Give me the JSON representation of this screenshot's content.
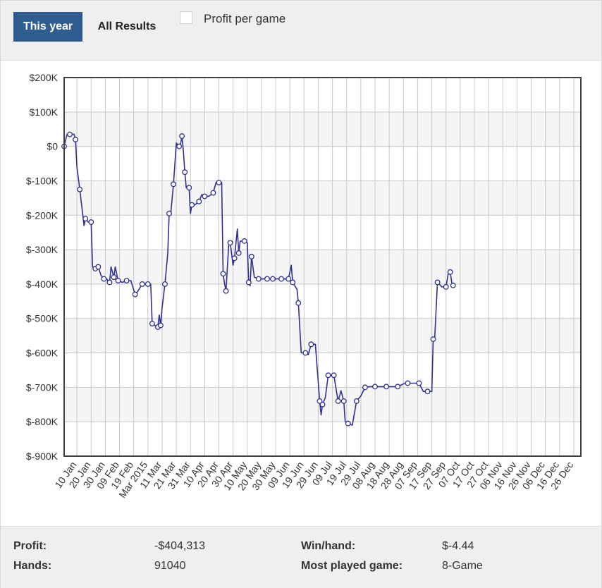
{
  "toolbar": {
    "tab_this_year": "This year",
    "tab_all_results": "All Results",
    "checkbox_label": "Profit per game",
    "checkbox_checked": false
  },
  "colors": {
    "accent": "#2f5d8f",
    "line": "#2e3192",
    "grid": "#c8c8c8",
    "band": "#f5f5f5"
  },
  "chart_data": {
    "type": "line",
    "ylim": [
      -900000,
      200000
    ],
    "y_ticks": [
      200000,
      100000,
      0,
      -100000,
      -200000,
      -300000,
      -400000,
      -500000,
      -600000,
      -700000,
      -800000,
      -900000
    ],
    "y_tick_labels": [
      "$200K",
      "$100K",
      "$0",
      "$-100K",
      "$-200K",
      "$-300K",
      "$-400K",
      "$-500K",
      "$-600K",
      "$-700K",
      "$-800K",
      "$-900K"
    ],
    "x_tick_labels": [
      "10 Jan",
      "20 Jan",
      "30 Jan",
      "09 Feb",
      "19 Feb",
      "Mar 2015",
      "11 Mar",
      "21 Mar",
      "31 Mar",
      "10 Apr",
      "20 Apr",
      "30 Apr",
      "10 May",
      "20 May",
      "30 May",
      "09 Jun",
      "19 Jun",
      "29 Jun",
      "09 Jul",
      "19 Jul",
      "29 Jul",
      "08 Aug",
      "18 Aug",
      "28 Aug",
      "07 Sep",
      "17 Sep",
      "27 Sep",
      "07 Oct",
      "17 Oct",
      "27 Oct",
      "06 Nov",
      "16 Nov",
      "26 Nov",
      "06 Dec",
      "16 Dec",
      "26 Dec"
    ],
    "x_tick_dates": [
      "2015-01-10",
      "2015-01-20",
      "2015-01-30",
      "2015-02-09",
      "2015-02-19",
      "2015-03-01",
      "2015-03-11",
      "2015-03-21",
      "2015-03-31",
      "2015-04-10",
      "2015-04-20",
      "2015-04-30",
      "2015-05-10",
      "2015-05-20",
      "2015-05-30",
      "2015-06-09",
      "2015-06-19",
      "2015-06-29",
      "2015-07-09",
      "2015-07-19",
      "2015-07-29",
      "2015-08-08",
      "2015-08-18",
      "2015-08-28",
      "2015-09-07",
      "2015-09-17",
      "2015-09-27",
      "2015-10-07",
      "2015-10-17",
      "2015-10-27",
      "2015-11-06",
      "2015-11-16",
      "2015-11-26",
      "2015-12-06",
      "2015-12-16",
      "2015-12-26"
    ],
    "xlim": [
      "2015-01-01",
      "2015-12-31"
    ],
    "grid": true,
    "series": [
      {
        "points": [
          [
            "2015-01-01",
            0
          ],
          [
            "2015-01-03",
            35000
          ],
          [
            "2015-01-05",
            35000
          ],
          [
            "2015-01-08",
            35000
          ],
          [
            "2015-01-09",
            20000
          ],
          [
            "2015-01-10",
            -60000
          ],
          [
            "2015-01-12",
            -125000
          ],
          [
            "2015-01-15",
            -230000
          ],
          [
            "2015-01-16",
            -210000
          ],
          [
            "2015-01-18",
            -220000
          ],
          [
            "2015-01-20",
            -220000
          ],
          [
            "2015-01-21",
            -350000
          ],
          [
            "2015-01-23",
            -355000
          ],
          [
            "2015-01-24",
            -345000
          ],
          [
            "2015-01-25",
            -350000
          ],
          [
            "2015-01-27",
            -375000
          ],
          [
            "2015-01-29",
            -385000
          ],
          [
            "2015-01-31",
            -385000
          ],
          [
            "2015-02-02",
            -395000
          ],
          [
            "2015-02-03",
            -350000
          ],
          [
            "2015-02-05",
            -380000
          ],
          [
            "2015-02-06",
            -350000
          ],
          [
            "2015-02-08",
            -390000
          ],
          [
            "2015-02-11",
            -395000
          ],
          [
            "2015-02-14",
            -390000
          ],
          [
            "2015-02-17",
            -390000
          ],
          [
            "2015-02-20",
            -430000
          ],
          [
            "2015-02-22",
            -420000
          ],
          [
            "2015-02-25",
            -400000
          ],
          [
            "2015-02-27",
            -400000
          ],
          [
            "2015-03-01",
            -400000
          ],
          [
            "2015-03-03",
            -400000
          ],
          [
            "2015-03-04",
            -515000
          ],
          [
            "2015-03-06",
            -520000
          ],
          [
            "2015-03-08",
            -525000
          ],
          [
            "2015-03-09",
            -490000
          ],
          [
            "2015-03-10",
            -520000
          ],
          [
            "2015-03-11",
            -470000
          ],
          [
            "2015-03-13",
            -400000
          ],
          [
            "2015-03-15",
            -310000
          ],
          [
            "2015-03-16",
            -195000
          ],
          [
            "2015-03-17",
            -200000
          ],
          [
            "2015-03-19",
            -110000
          ],
          [
            "2015-03-21",
            10000
          ],
          [
            "2015-03-23",
            0
          ],
          [
            "2015-03-24",
            5000
          ],
          [
            "2015-03-25",
            30000
          ],
          [
            "2015-03-26",
            -15000
          ],
          [
            "2015-03-27",
            -75000
          ],
          [
            "2015-03-28",
            -120000
          ],
          [
            "2015-03-30",
            -120000
          ],
          [
            "2015-03-31",
            -195000
          ],
          [
            "2015-04-01",
            -170000
          ],
          [
            "2015-04-03",
            -170000
          ],
          [
            "2015-04-06",
            -160000
          ],
          [
            "2015-04-08",
            -140000
          ],
          [
            "2015-04-10",
            -145000
          ],
          [
            "2015-04-13",
            -145000
          ],
          [
            "2015-04-16",
            -135000
          ],
          [
            "2015-04-18",
            -105000
          ],
          [
            "2015-04-20",
            -105000
          ],
          [
            "2015-04-22",
            -105000
          ],
          [
            "2015-04-23",
            -370000
          ],
          [
            "2015-04-24",
            -400000
          ],
          [
            "2015-04-25",
            -420000
          ],
          [
            "2015-04-27",
            -280000
          ],
          [
            "2015-04-28",
            -280000
          ],
          [
            "2015-04-30",
            -345000
          ],
          [
            "2015-05-01",
            -325000
          ],
          [
            "2015-05-03",
            -240000
          ],
          [
            "2015-05-04",
            -310000
          ],
          [
            "2015-05-05",
            -275000
          ],
          [
            "2015-05-08",
            -275000
          ],
          [
            "2015-05-10",
            -280000
          ],
          [
            "2015-05-11",
            -395000
          ],
          [
            "2015-05-12",
            -405000
          ],
          [
            "2015-05-13",
            -320000
          ],
          [
            "2015-05-15",
            -380000
          ],
          [
            "2015-05-18",
            -385000
          ],
          [
            "2015-05-21",
            -385000
          ],
          [
            "2015-05-24",
            -385000
          ],
          [
            "2015-05-26",
            -385000
          ],
          [
            "2015-05-28",
            -385000
          ],
          [
            "2015-05-31",
            -385000
          ],
          [
            "2015-06-03",
            -385000
          ],
          [
            "2015-06-06",
            -385000
          ],
          [
            "2015-06-08",
            -385000
          ],
          [
            "2015-06-10",
            -345000
          ],
          [
            "2015-06-11",
            -395000
          ],
          [
            "2015-06-14",
            -415000
          ],
          [
            "2015-06-15",
            -455000
          ],
          [
            "2015-06-17",
            -600000
          ],
          [
            "2015-06-20",
            -600000
          ],
          [
            "2015-06-22",
            -605000
          ],
          [
            "2015-06-24",
            -575000
          ],
          [
            "2015-06-27",
            -575000
          ],
          [
            "2015-06-30",
            -740000
          ],
          [
            "2015-07-01",
            -780000
          ],
          [
            "2015-07-02",
            -750000
          ],
          [
            "2015-07-04",
            -730000
          ],
          [
            "2015-07-06",
            -665000
          ],
          [
            "2015-07-08",
            -665000
          ],
          [
            "2015-07-10",
            -665000
          ],
          [
            "2015-07-12",
            -715000
          ],
          [
            "2015-07-13",
            -740000
          ],
          [
            "2015-07-15",
            -710000
          ],
          [
            "2015-07-17",
            -740000
          ],
          [
            "2015-07-18",
            -800000
          ],
          [
            "2015-07-20",
            -805000
          ],
          [
            "2015-07-23",
            -810000
          ],
          [
            "2015-07-26",
            -740000
          ],
          [
            "2015-07-29",
            -725000
          ],
          [
            "2015-08-01",
            -700000
          ],
          [
            "2015-08-04",
            -698000
          ],
          [
            "2015-08-08",
            -698000
          ],
          [
            "2015-08-12",
            -698000
          ],
          [
            "2015-08-16",
            -698000
          ],
          [
            "2015-08-20",
            -698000
          ],
          [
            "2015-08-24",
            -698000
          ],
          [
            "2015-08-28",
            -690000
          ],
          [
            "2015-08-31",
            -688000
          ],
          [
            "2015-09-04",
            -688000
          ],
          [
            "2015-09-08",
            -688000
          ],
          [
            "2015-09-11",
            -712000
          ],
          [
            "2015-09-14",
            -712000
          ],
          [
            "2015-09-17",
            -712000
          ],
          [
            "2015-09-18",
            -560000
          ],
          [
            "2015-09-19",
            -560000
          ],
          [
            "2015-09-21",
            -395000
          ],
          [
            "2015-09-24",
            -408000
          ],
          [
            "2015-09-27",
            -408000
          ],
          [
            "2015-09-29",
            -360000
          ],
          [
            "2015-09-30",
            -365000
          ],
          [
            "2015-10-01",
            -395000
          ],
          [
            "2015-10-02",
            -404000
          ]
        ]
      }
    ]
  },
  "summary": {
    "profit_label": "Profit:",
    "profit_value": "-$404,313",
    "hands_label": "Hands:",
    "hands_value": "91040",
    "win_label": "Win/hand:",
    "win_value": "$-4.44",
    "game_label": "Most played game:",
    "game_value": "8-Game"
  }
}
